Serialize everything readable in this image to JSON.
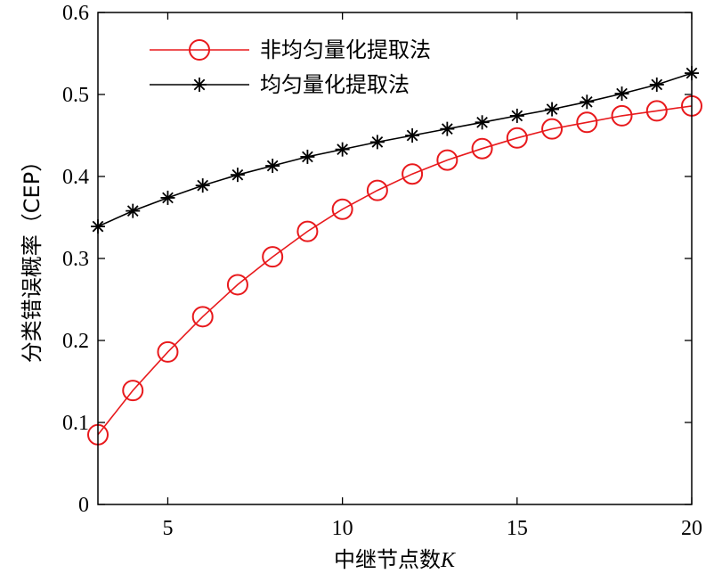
{
  "chart_data": {
    "type": "line",
    "xlabel": "中继节点数",
    "xlabel_var": "K",
    "ylabel": "分类错误概率（CEP）",
    "xlim": [
      3,
      20
    ],
    "ylim": [
      0,
      0.6
    ],
    "xticks": [
      5,
      10,
      15,
      20
    ],
    "yticks": [
      0,
      0.1,
      0.2,
      0.3,
      0.4,
      0.5,
      0.6
    ],
    "xtick_labels": [
      "5",
      "10",
      "15",
      "20"
    ],
    "ytick_labels": [
      "0",
      "0.1",
      "0.2",
      "0.3",
      "0.4",
      "0.5",
      "0.6"
    ],
    "grid": false,
    "legend_position": "top-left",
    "x": [
      3,
      4,
      5,
      6,
      7,
      8,
      9,
      10,
      11,
      12,
      13,
      14,
      15,
      16,
      17,
      18,
      19,
      20
    ],
    "series": [
      {
        "name": "非均匀量化提取法",
        "color": "#e8191c",
        "marker": "circle",
        "values": [
          0.085,
          0.139,
          0.186,
          0.229,
          0.268,
          0.302,
          0.333,
          0.36,
          0.383,
          0.403,
          0.42,
          0.434,
          0.447,
          0.458,
          0.466,
          0.474,
          0.48,
          0.486
        ]
      },
      {
        "name": "均匀量化提取法",
        "color": "#000000",
        "marker": "asterisk",
        "values": [
          0.339,
          0.358,
          0.374,
          0.389,
          0.402,
          0.413,
          0.424,
          0.433,
          0.442,
          0.45,
          0.458,
          0.466,
          0.474,
          0.482,
          0.491,
          0.501,
          0.512,
          0.526
        ]
      }
    ]
  }
}
